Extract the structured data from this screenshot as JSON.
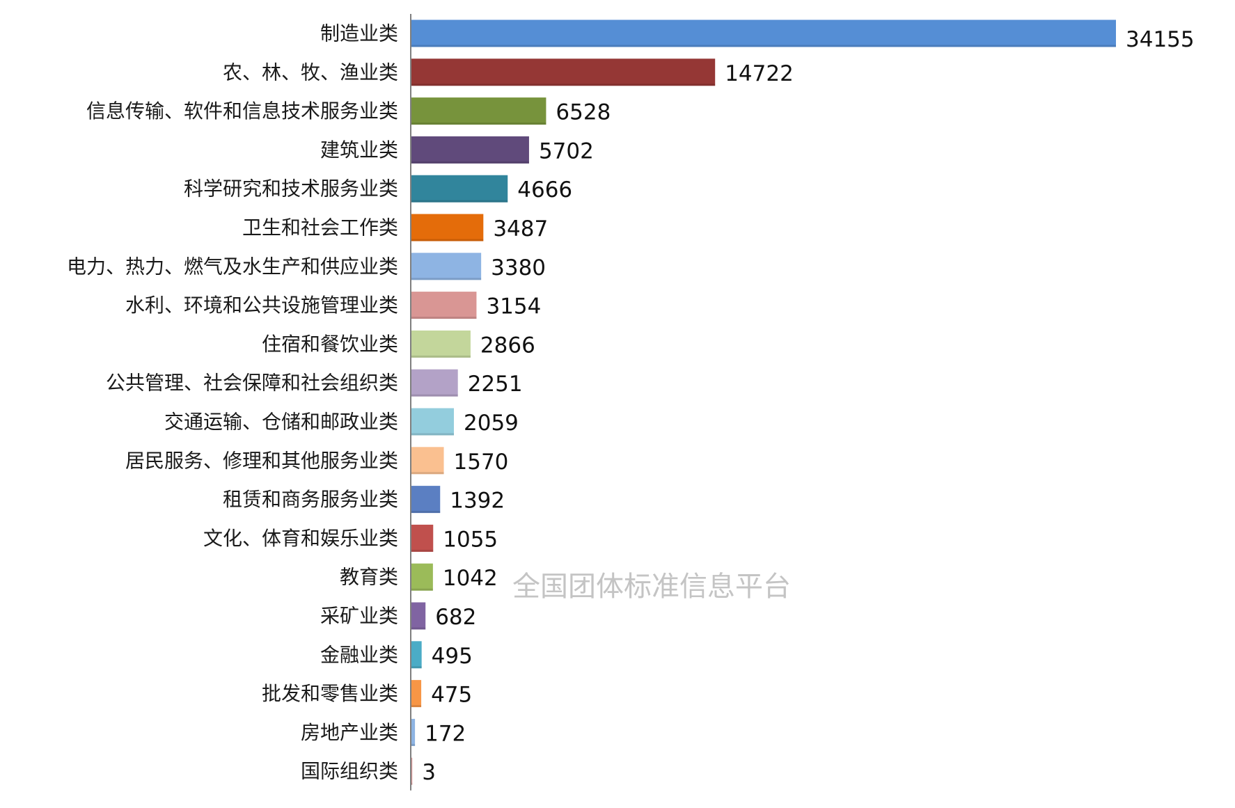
{
  "watermark": "全国团体标准信息平台",
  "chart_data": {
    "type": "bar",
    "orientation": "horizontal",
    "title": "",
    "xlabel": "",
    "ylabel": "",
    "grid": false,
    "legend": "none",
    "categories": [
      "制造业类",
      "农、林、牧、渔业类",
      "信息传输、软件和信息技术服务业类",
      "建筑业类",
      "科学研究和技术服务业类",
      "卫生和社会工作类",
      "电力、热力、燃气及水生产和供应业类",
      "水利、环境和公共设施管理业类",
      "住宿和餐饮业类",
      "公共管理、社会保障和社会组织类",
      "交通运输、仓储和邮政业类",
      "居民服务、修理和其他服务业类",
      "租赁和商务服务业类",
      "文化、体育和娱乐业类",
      "教育类",
      "采矿业类",
      "金融业类",
      "批发和零售业类",
      "房地产业类",
      "国际组织类"
    ],
    "values": [
      34155,
      14722,
      6528,
      5702,
      4666,
      3487,
      3380,
      3154,
      2866,
      2251,
      2059,
      1570,
      1392,
      1055,
      1042,
      682,
      495,
      475,
      172,
      3
    ],
    "colors": [
      "#558ed5",
      "#953735",
      "#77933c",
      "#604a7b",
      "#31859c",
      "#e46c0a",
      "#8eb4e3",
      "#d99694",
      "#c3d69b",
      "#b3a2c7",
      "#93cddd",
      "#fac090",
      "#5b7fc2",
      "#c0504d",
      "#9bbb59",
      "#8064a2",
      "#4bacc6",
      "#f79646",
      "#8eb4e3",
      "#d99694"
    ],
    "axis_color": "#7f7f7f",
    "xlim": [
      0,
      34155
    ]
  }
}
